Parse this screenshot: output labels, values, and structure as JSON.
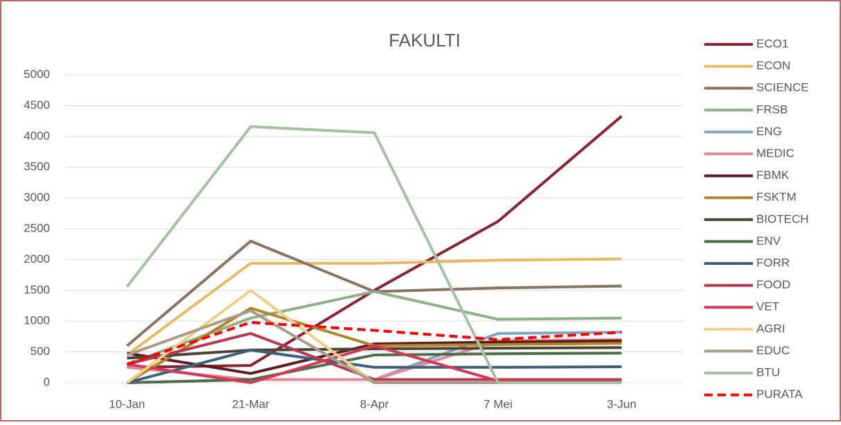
{
  "chart_data": {
    "type": "line",
    "title": "FAKULTI",
    "categories": [
      "10-Jan",
      "21-Mar",
      "8-Apr",
      "7 Mei",
      "3-Jun"
    ],
    "ylim": [
      0,
      5000
    ],
    "yticks": [
      0,
      500,
      1000,
      1500,
      2000,
      2500,
      3000,
      3500,
      4000,
      4500,
      5000
    ],
    "grid": true,
    "series": [
      {
        "name": "ECO1",
        "color": "#8b2232",
        "values": [
          250,
          280,
          1500,
          2620,
          4330
        ]
      },
      {
        "name": "ECON",
        "color": "#e6bb63",
        "values": [
          450,
          1940,
          1940,
          1990,
          2010
        ]
      },
      {
        "name": "SCIENCE",
        "color": "#877461",
        "values": [
          600,
          2300,
          1480,
          1540,
          1570
        ]
      },
      {
        "name": "FRSB",
        "color": "#8fae8b",
        "values": [
          300,
          1050,
          1480,
          1030,
          1050
        ]
      },
      {
        "name": "ENG",
        "color": "#7ea6c4",
        "values": [
          0,
          50,
          50,
          800,
          820
        ]
      },
      {
        "name": "MEDIC",
        "color": "#e48996",
        "values": [
          250,
          50,
          50,
          680,
          700
        ]
      },
      {
        "name": "FBMK",
        "color": "#5c1a22",
        "values": [
          480,
          150,
          630,
          660,
          680
        ]
      },
      {
        "name": "FSKTM",
        "color": "#b08526",
        "values": [
          0,
          1210,
          600,
          620,
          640
        ]
      },
      {
        "name": "BIOTECH",
        "color": "#4d4335",
        "values": [
          400,
          530,
          550,
          560,
          570
        ]
      },
      {
        "name": "ENV",
        "color": "#4f6e48",
        "values": [
          0,
          50,
          450,
          470,
          480
        ]
      },
      {
        "name": "FORR",
        "color": "#3d5f78",
        "values": [
          0,
          530,
          250,
          250,
          260
        ]
      },
      {
        "name": "FOOD",
        "color": "#b33850",
        "values": [
          300,
          800,
          50,
          50,
          50
        ]
      },
      {
        "name": "VET",
        "color": "#d33a56",
        "values": [
          300,
          0,
          600,
          30,
          30
        ]
      },
      {
        "name": "AGRI",
        "color": "#f0cf86",
        "values": [
          0,
          1500,
          0,
          0,
          0
        ]
      },
      {
        "name": "EDUC",
        "color": "#ab9a86",
        "values": [
          450,
          1170,
          0,
          0,
          0
        ]
      },
      {
        "name": "BTU",
        "color": "#a4c2a0",
        "values": [
          1560,
          4160,
          4060,
          0,
          0
        ]
      },
      {
        "name": "PURATA",
        "color": "#ff0000",
        "dashed": true,
        "values": [
          300,
          980,
          850,
          700,
          820
        ]
      }
    ]
  }
}
